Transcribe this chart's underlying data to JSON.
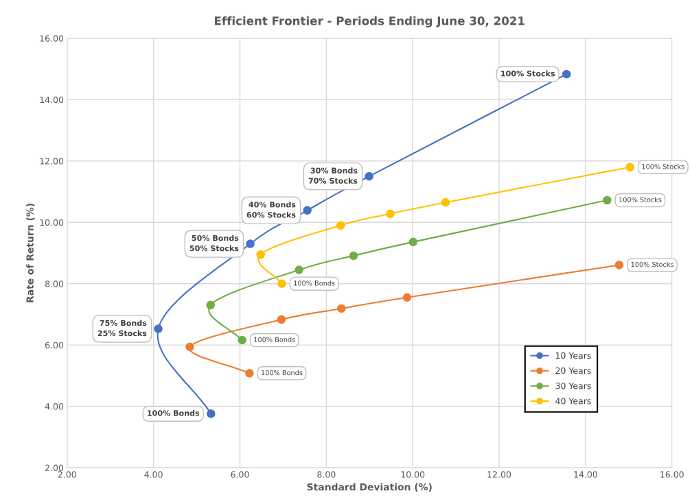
{
  "chart_data": {
    "type": "line",
    "title": "Efficient Frontier - Periods Ending June 30, 2021",
    "xlabel": "Standard Deviation (%)",
    "ylabel": "Rate of Return (%)",
    "series": [
      {
        "name": "10 Years",
        "color": "#4472c4",
        "x": [
          5.33,
          4.11,
          6.24,
          7.56,
          8.99,
          13.56
        ],
        "values": [
          3.76,
          6.53,
          9.3,
          10.39,
          11.5,
          14.83
        ]
      },
      {
        "name": "20 Years",
        "color": "#ed7d31",
        "x": [
          6.22,
          4.84,
          6.96,
          8.35,
          9.87,
          14.78
        ],
        "values": [
          5.08,
          5.94,
          6.83,
          7.19,
          7.55,
          8.61
        ]
      },
      {
        "name": "30 Years",
        "color": "#70ad47",
        "x": [
          6.05,
          5.32,
          7.37,
          8.63,
          10.01,
          14.5
        ],
        "values": [
          6.16,
          7.3,
          8.45,
          8.91,
          9.36,
          10.72
        ]
      },
      {
        "name": "40 Years",
        "color": "#ffc000",
        "x": [
          6.97,
          6.48,
          8.33,
          9.48,
          10.76,
          15.03
        ],
        "values": [
          8.0,
          8.95,
          9.9,
          10.28,
          10.65,
          11.8
        ]
      }
    ],
    "xlim": [
      2,
      16
    ],
    "ylim": [
      2,
      16
    ],
    "xticks": [
      {
        "value": 2,
        "label": "2.00"
      },
      {
        "value": 4,
        "label": "4.00"
      },
      {
        "value": 6,
        "label": "6.00"
      },
      {
        "value": 8,
        "label": "8.00"
      },
      {
        "value": 10,
        "label": "10.00"
      },
      {
        "value": 12,
        "label": "12.00"
      },
      {
        "value": 14,
        "label": "14.00"
      },
      {
        "value": 16,
        "label": "16.00"
      }
    ],
    "yticks": [
      {
        "value": 2,
        "label": "2.00"
      },
      {
        "value": 4,
        "label": "4.00"
      },
      {
        "value": 6,
        "label": "6.00"
      },
      {
        "value": 8,
        "label": "8.00"
      },
      {
        "value": 10,
        "label": "10.00"
      },
      {
        "value": 12,
        "label": "12.00"
      },
      {
        "value": 14,
        "label": "14.00"
      },
      {
        "value": 16,
        "label": "16.00"
      }
    ],
    "annotations": [
      {
        "text": "100% Bonds",
        "x": 5.33,
        "y": 3.76
      },
      {
        "text": "75% Bonds\n25% Stocks",
        "x": 4.11,
        "y": 6.53
      },
      {
        "text": "50% Bonds\n50% Stocks",
        "x": 6.24,
        "y": 9.3
      },
      {
        "text": "40% Bonds\n60% Stocks",
        "x": 7.56,
        "y": 10.39
      },
      {
        "text": "30% Bonds\n70% Stocks",
        "x": 8.99,
        "y": 11.5
      },
      {
        "text": "100% Stocks",
        "x": 13.56,
        "y": 14.83
      },
      {
        "text": "100% Bonds",
        "x": 6.22,
        "y": 5.08
      },
      {
        "text": "100% Stocks",
        "x": 14.78,
        "y": 8.61
      },
      {
        "text": "100% Bonds",
        "x": 6.05,
        "y": 6.16
      },
      {
        "text": "100% Stocks",
        "x": 14.5,
        "y": 10.72
      },
      {
        "text": "100% Bonds",
        "x": 6.97,
        "y": 8.0
      },
      {
        "text": "100% Stocks",
        "x": 15.03,
        "y": 11.8
      }
    ],
    "grid": true,
    "legend": "bottom right",
    "marker": "circle",
    "line_style": "solid"
  }
}
